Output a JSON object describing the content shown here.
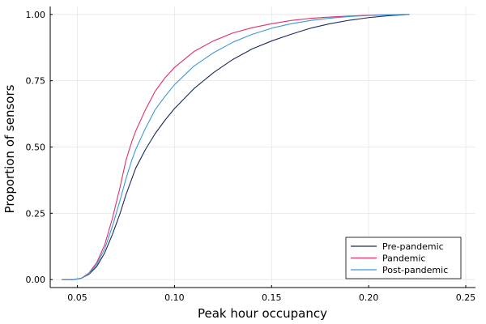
{
  "chart_data": {
    "type": "line",
    "title": "",
    "xlabel": "Peak hour occupancy",
    "ylabel": "Proportion of sensors",
    "xlim": [
      0.036,
      0.255
    ],
    "ylim": [
      -0.03,
      1.03
    ],
    "xticks": [
      0.05,
      0.1,
      0.15,
      0.2,
      0.25
    ],
    "xtick_labels": [
      "0.05",
      "0.10",
      "0.15",
      "0.20",
      "0.25"
    ],
    "yticks": [
      0.0,
      0.25,
      0.5,
      0.75,
      1.0
    ],
    "ytick_labels": [
      "0.00",
      "0.25",
      "0.50",
      "0.75",
      "1.00"
    ],
    "grid": true,
    "legend_position": "bottom-right",
    "series": [
      {
        "name": "Pre-pandemic",
        "color": "#1b2a5c",
        "points": [
          [
            0.042,
            0.0
          ],
          [
            0.048,
            0.0
          ],
          [
            0.052,
            0.005
          ],
          [
            0.056,
            0.02
          ],
          [
            0.06,
            0.05
          ],
          [
            0.064,
            0.1
          ],
          [
            0.068,
            0.17
          ],
          [
            0.072,
            0.25
          ],
          [
            0.075,
            0.32
          ],
          [
            0.078,
            0.38
          ],
          [
            0.08,
            0.42
          ],
          [
            0.085,
            0.49
          ],
          [
            0.09,
            0.55
          ],
          [
            0.095,
            0.6
          ],
          [
            0.1,
            0.645
          ],
          [
            0.11,
            0.72
          ],
          [
            0.12,
            0.78
          ],
          [
            0.13,
            0.83
          ],
          [
            0.14,
            0.87
          ],
          [
            0.15,
            0.9
          ],
          [
            0.16,
            0.925
          ],
          [
            0.17,
            0.948
          ],
          [
            0.18,
            0.965
          ],
          [
            0.19,
            0.978
          ],
          [
            0.2,
            0.988
          ],
          [
            0.21,
            0.995
          ],
          [
            0.221,
            1.0
          ]
        ]
      },
      {
        "name": "Pandemic",
        "color": "#e0306a",
        "points": [
          [
            0.042,
            0.0
          ],
          [
            0.048,
            0.0
          ],
          [
            0.052,
            0.005
          ],
          [
            0.056,
            0.025
          ],
          [
            0.06,
            0.065
          ],
          [
            0.064,
            0.13
          ],
          [
            0.068,
            0.23
          ],
          [
            0.072,
            0.35
          ],
          [
            0.075,
            0.45
          ],
          [
            0.078,
            0.52
          ],
          [
            0.08,
            0.56
          ],
          [
            0.085,
            0.64
          ],
          [
            0.09,
            0.71
          ],
          [
            0.095,
            0.76
          ],
          [
            0.1,
            0.8
          ],
          [
            0.11,
            0.86
          ],
          [
            0.12,
            0.9
          ],
          [
            0.13,
            0.93
          ],
          [
            0.14,
            0.95
          ],
          [
            0.15,
            0.965
          ],
          [
            0.16,
            0.977
          ],
          [
            0.17,
            0.985
          ],
          [
            0.18,
            0.99
          ],
          [
            0.19,
            0.994
          ],
          [
            0.2,
            0.997
          ],
          [
            0.21,
            0.999
          ],
          [
            0.221,
            1.0
          ]
        ]
      },
      {
        "name": "Post-pandemic",
        "color": "#3a98d6",
        "points": [
          [
            0.042,
            0.0
          ],
          [
            0.048,
            0.0
          ],
          [
            0.052,
            0.005
          ],
          [
            0.056,
            0.022
          ],
          [
            0.06,
            0.058
          ],
          [
            0.064,
            0.115
          ],
          [
            0.068,
            0.2
          ],
          [
            0.072,
            0.3
          ],
          [
            0.075,
            0.38
          ],
          [
            0.078,
            0.45
          ],
          [
            0.08,
            0.49
          ],
          [
            0.085,
            0.57
          ],
          [
            0.09,
            0.64
          ],
          [
            0.095,
            0.69
          ],
          [
            0.1,
            0.735
          ],
          [
            0.11,
            0.805
          ],
          [
            0.12,
            0.855
          ],
          [
            0.13,
            0.895
          ],
          [
            0.14,
            0.925
          ],
          [
            0.15,
            0.948
          ],
          [
            0.16,
            0.965
          ],
          [
            0.17,
            0.977
          ],
          [
            0.18,
            0.986
          ],
          [
            0.19,
            0.992
          ],
          [
            0.2,
            0.996
          ],
          [
            0.21,
            0.998
          ],
          [
            0.221,
            1.0
          ]
        ]
      }
    ]
  }
}
